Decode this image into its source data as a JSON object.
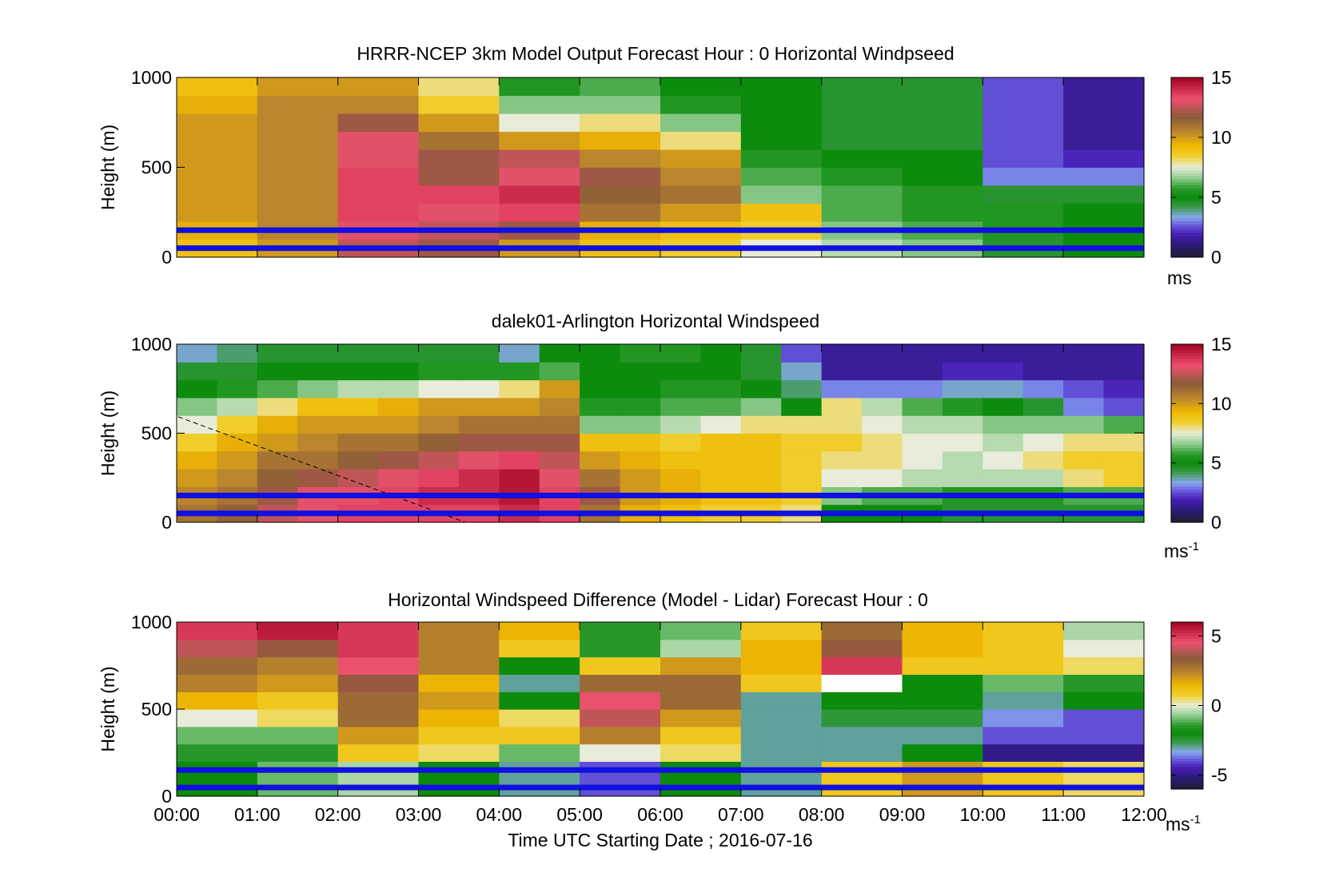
{
  "figure": {
    "xlabel": "Time UTC  Starting Date ; 2016-07-16",
    "x_ticks": [
      "00:00",
      "01:00",
      "02:00",
      "03:00",
      "04:00",
      "05:00",
      "06:00",
      "07:00",
      "08:00",
      "09:00",
      "10:00",
      "11:00",
      "12:00"
    ]
  },
  "chart_data": [
    {
      "type": "heatmap",
      "title": "HRRR-NCEP 3km Model Output   Forecast Hour : 0 Horizontal Windpseed",
      "ylabel": "Height (m)",
      "ylim": [
        0,
        1000
      ],
      "y_ticks": [
        0,
        500,
        1000
      ],
      "xlim_hours": [
        0,
        12
      ],
      "colorbar": {
        "label": "ms",
        "label_sup": "",
        "range": [
          0,
          15
        ],
        "ticks": [
          0,
          5,
          10,
          15
        ]
      },
      "reference_heights_m": [
        50,
        150
      ],
      "rows_height_m": [
        0,
        100,
        200,
        300,
        400,
        500,
        600,
        700,
        800,
        900
      ],
      "columns_time_h": [
        0,
        1,
        2,
        3,
        4,
        5,
        6,
        7,
        8,
        9,
        10,
        11
      ],
      "values": [
        [
          9,
          10,
          12.5,
          12,
          10,
          9,
          8.5,
          7.5,
          7,
          6.5,
          4.5,
          5
        ],
        [
          9.5,
          10.5,
          13,
          12.5,
          12,
          9.5,
          9,
          8.5,
          6.5,
          6,
          5.5,
          5
        ],
        [
          10,
          10.5,
          13.5,
          13,
          13.5,
          11,
          10,
          9,
          6,
          5.5,
          5.5,
          5
        ],
        [
          10,
          10.5,
          13.5,
          13.5,
          14,
          11.5,
          11,
          6.5,
          6,
          5.5,
          4.5,
          4.5
        ],
        [
          10,
          10.5,
          13.5,
          12,
          13,
          12,
          10.5,
          6,
          5.5,
          5,
          3,
          3
        ],
        [
          10,
          10.5,
          13,
          12,
          12.5,
          10.5,
          10,
          5.5,
          5,
          5,
          2.5,
          2
        ],
        [
          10,
          10.5,
          13,
          11,
          10,
          9.5,
          8,
          5,
          4.5,
          4.5,
          2.5,
          1.5
        ],
        [
          10,
          10.5,
          12,
          10,
          7.5,
          8,
          6.5,
          5,
          4.5,
          4.5,
          2.5,
          1.5
        ],
        [
          9.5,
          10.5,
          10.5,
          8.5,
          6.5,
          6.5,
          5.5,
          5,
          4.5,
          4.5,
          2.5,
          1.5
        ],
        [
          9,
          10,
          10,
          8,
          5.5,
          6,
          5,
          5,
          4.5,
          4.5,
          2.5,
          1.5
        ]
      ]
    },
    {
      "type": "heatmap",
      "title": "dalek01-Arlington  Horizontal Windspeed",
      "ylabel": "Height (m)",
      "ylim": [
        0,
        1000
      ],
      "y_ticks": [
        0,
        500,
        1000
      ],
      "xlim_hours": [
        0,
        12
      ],
      "colorbar": {
        "label": "ms",
        "label_sup": "-1",
        "range": [
          0,
          15
        ],
        "ticks": [
          0,
          5,
          10,
          15
        ]
      },
      "reference_heights_m": [
        50,
        150
      ],
      "rows_height_m": [
        0,
        100,
        200,
        300,
        400,
        500,
        600,
        700,
        800,
        900
      ],
      "columns_time_h": [
        0,
        0.5,
        1,
        1.5,
        2,
        2.5,
        3,
        3.5,
        4,
        4.5,
        5,
        5.5,
        6,
        6.5,
        7,
        7.5,
        8,
        8.5,
        9,
        9.5,
        10,
        10.5,
        11,
        11.5
      ],
      "values": [
        [
          11,
          11.5,
          12.5,
          13,
          13.5,
          13.5,
          13.5,
          13.5,
          14,
          13.5,
          11,
          9.5,
          9,
          8.5,
          8.5,
          8,
          5,
          5,
          5,
          4.5,
          4.5,
          4.5,
          4.5,
          4.5
        ],
        [
          10.5,
          11,
          12,
          13,
          13,
          13.5,
          14,
          14,
          14.5,
          13.5,
          12,
          10,
          9.5,
          9,
          9,
          8.5,
          6.5,
          6,
          6,
          5.5,
          5.5,
          5.5,
          6,
          6
        ],
        [
          10,
          10.5,
          11.5,
          12,
          12.5,
          13,
          13.5,
          14,
          14.5,
          13,
          11,
          10,
          9.5,
          9,
          9,
          8.5,
          7.5,
          7.5,
          7,
          7,
          7,
          7,
          8,
          8.5
        ],
        [
          9.5,
          10,
          11,
          11,
          11.5,
          12,
          12.5,
          13,
          13.5,
          12.5,
          10,
          9.5,
          9,
          9,
          9,
          8.5,
          8,
          8,
          7.5,
          7,
          7.5,
          8,
          8.5,
          8.5
        ],
        [
          8.5,
          9.5,
          10,
          10.5,
          11,
          11,
          11.5,
          12,
          12,
          12,
          9,
          9,
          8.5,
          9,
          9,
          8.5,
          8.5,
          8,
          7.5,
          7.5,
          7,
          7.5,
          8,
          8
        ],
        [
          7.5,
          8.5,
          9.5,
          10,
          10,
          10,
          10.5,
          11,
          11,
          11,
          6.5,
          6.5,
          7,
          7.5,
          8,
          8,
          8,
          7.5,
          7,
          7,
          6.5,
          6.5,
          6.5,
          6
        ],
        [
          6.5,
          7,
          8,
          9,
          9,
          9.5,
          10,
          10,
          10,
          10.5,
          5.5,
          5.5,
          6,
          6,
          6.5,
          5,
          8,
          7,
          6,
          5.5,
          5,
          4.5,
          3,
          2.5
        ],
        [
          5,
          5.5,
          6,
          6.5,
          7,
          7,
          7.5,
          7.5,
          8,
          10,
          5,
          5,
          5.5,
          5.5,
          5,
          4,
          3,
          3,
          3,
          3.5,
          3.5,
          3,
          2.5,
          2
        ],
        [
          4.5,
          4.5,
          5,
          5,
          5,
          5,
          5.5,
          5.5,
          5.5,
          6,
          5,
          5,
          5,
          5,
          4.5,
          3.5,
          1.5,
          1.5,
          1.5,
          2,
          2,
          1.5,
          1.5,
          1.5
        ],
        [
          3.5,
          4,
          4.5,
          4.5,
          4.5,
          4.5,
          4.5,
          4.5,
          3.5,
          5,
          5,
          5.5,
          5.5,
          5,
          4.5,
          2.5,
          1.5,
          1.5,
          1.5,
          1.5,
          1.5,
          1.5,
          1.5,
          1.5
        ]
      ]
    },
    {
      "type": "heatmap",
      "title": "Horizontal Windspeed Difference (Model - Lidar) Forecast Hour : 0",
      "ylabel": "Height (m)",
      "ylim": [
        0,
        1000
      ],
      "y_ticks": [
        0,
        500,
        1000
      ],
      "xlim_hours": [
        0,
        12
      ],
      "colorbar": {
        "label": "ms",
        "label_sup": "-1",
        "range": [
          -6,
          6
        ],
        "ticks": [
          -5,
          0,
          5
        ]
      },
      "reference_heights_m": [
        50,
        150
      ],
      "rows_height_m": [
        0,
        100,
        200,
        300,
        400,
        500,
        600,
        700,
        800,
        900
      ],
      "columns_time_h": [
        0,
        1,
        2,
        3,
        4,
        5,
        6,
        7,
        8,
        9,
        10,
        11
      ],
      "values": [
        [
          -2,
          -1,
          -0.5,
          -2,
          -3,
          -4,
          -2,
          -3,
          1,
          2,
          1,
          0.5
        ],
        [
          -2,
          -1,
          -0.5,
          -2,
          -3,
          -4,
          -2,
          -3,
          1,
          2,
          1,
          0.5
        ],
        [
          -1.5,
          -1.5,
          1,
          0.5,
          -1,
          0,
          0.5,
          -3,
          -3,
          -2,
          -5,
          -5
        ],
        [
          -1,
          -1,
          2,
          1,
          1,
          2.5,
          1,
          -3,
          -3,
          -3,
          -4,
          -4
        ],
        [
          0,
          0.5,
          3,
          1.5,
          0.5,
          4,
          2,
          -3,
          -2.5,
          -2.5,
          -3.5,
          -4
        ],
        [
          1.5,
          1,
          3,
          2,
          -2,
          4.5,
          3,
          -3,
          -2,
          -2,
          -3,
          -2
        ],
        [
          2.5,
          2,
          3.5,
          1.5,
          -3,
          3,
          3,
          1,
          -99,
          -2,
          -1,
          -1.5
        ],
        [
          3,
          2.5,
          4.5,
          2.5,
          -2,
          1,
          2,
          1.5,
          5,
          1,
          1,
          0.5
        ],
        [
          4,
          3.5,
          5,
          2.5,
          1,
          -1.5,
          -0.5,
          1.5,
          3.5,
          1.5,
          1,
          0
        ],
        [
          5,
          5.5,
          5,
          2.5,
          1.5,
          -1.5,
          -1,
          1,
          3,
          1.5,
          1,
          -0.5
        ]
      ]
    }
  ],
  "colors": {
    "reference_line": "#1010e0",
    "invalid": "#ffffff",
    "speed_colormap": [
      [
        0,
        "#1e1e32"
      ],
      [
        0.07,
        "#2c1a7a"
      ],
      [
        0.13,
        "#4820b8"
      ],
      [
        0.18,
        "#6a60e0"
      ],
      [
        0.22,
        "#88a8f0"
      ],
      [
        0.28,
        "#3a9a48"
      ],
      [
        0.33,
        "#0a8a0a"
      ],
      [
        0.38,
        "#2a9a2a"
      ],
      [
        0.44,
        "#90cc90"
      ],
      [
        0.5,
        "#e8ecd8"
      ],
      [
        0.56,
        "#f0d030"
      ],
      [
        0.62,
        "#f0b800"
      ],
      [
        0.69,
        "#c08a2a"
      ],
      [
        0.78,
        "#8a5a3a"
      ],
      [
        0.88,
        "#f05070"
      ],
      [
        1.0,
        "#a00020"
      ]
    ]
  }
}
